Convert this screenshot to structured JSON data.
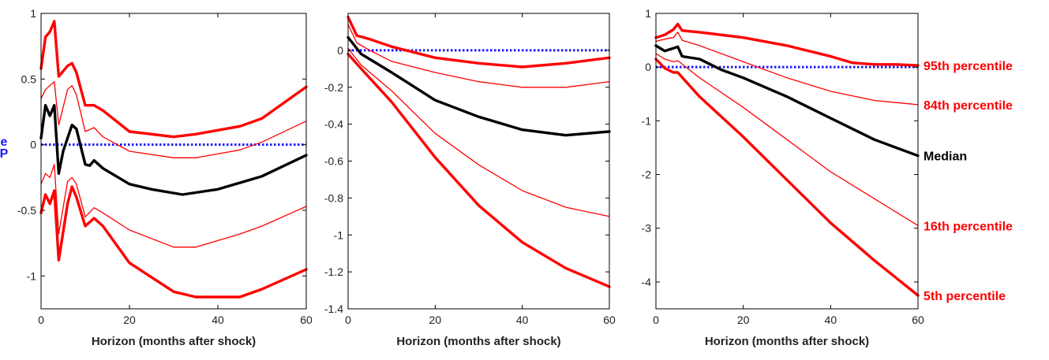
{
  "edge_label": {
    "top": "e",
    "bottom": "P",
    "color": "#1a1aff"
  },
  "colors": {
    "band": "#ff0000",
    "median": "#000000",
    "zero": "#1a1aff"
  },
  "chart_data": [
    {
      "type": "line",
      "xlabel": "Horizon (months after shock)",
      "xlim": [
        0,
        60
      ],
      "ylim": [
        -1.25,
        1.0
      ],
      "xticks": [
        0,
        20,
        40,
        60
      ],
      "yticks": [
        -1,
        -0.5,
        0,
        0.5,
        1
      ],
      "xtick_labels": [
        "0",
        "20",
        "40",
        "60"
      ],
      "ytick_labels": [
        "-1",
        "-0.5",
        "0",
        "0.5",
        "1"
      ],
      "zero_line": 0,
      "series": [
        {
          "key": "p95",
          "style": "thick-red",
          "x": [
            0,
            1,
            2,
            3,
            4,
            6,
            7,
            8,
            10,
            12,
            14,
            20,
            30,
            35,
            45,
            50,
            60
          ],
          "y": [
            0.58,
            0.82,
            0.86,
            0.94,
            0.52,
            0.6,
            0.62,
            0.55,
            0.3,
            0.3,
            0.26,
            0.1,
            0.06,
            0.08,
            0.14,
            0.2,
            0.44
          ]
        },
        {
          "key": "p84",
          "style": "thin-red",
          "x": [
            0,
            1,
            2,
            3,
            4,
            6,
            7,
            8,
            10,
            12,
            14,
            20,
            30,
            35,
            45,
            50,
            60
          ],
          "y": [
            0.35,
            0.42,
            0.45,
            0.48,
            0.15,
            0.42,
            0.45,
            0.38,
            0.1,
            0.13,
            0.06,
            -0.05,
            -0.1,
            -0.1,
            -0.04,
            0.02,
            0.18
          ]
        },
        {
          "key": "median",
          "style": "thick-black",
          "x": [
            0,
            1,
            2,
            3,
            4,
            5,
            7,
            8,
            10,
            11,
            12,
            14,
            20,
            25,
            32,
            40,
            50,
            60
          ],
          "y": [
            0.05,
            0.3,
            0.22,
            0.3,
            -0.22,
            -0.05,
            0.15,
            0.12,
            -0.15,
            -0.16,
            -0.12,
            -0.18,
            -0.3,
            -0.34,
            -0.38,
            -0.34,
            -0.24,
            -0.08
          ]
        },
        {
          "key": "p16",
          "style": "thin-red",
          "x": [
            0,
            1,
            2,
            3,
            4,
            6,
            7,
            8,
            10,
            12,
            14,
            20,
            30,
            35,
            45,
            50,
            60
          ],
          "y": [
            -0.3,
            -0.22,
            -0.25,
            -0.15,
            -0.68,
            -0.28,
            -0.25,
            -0.3,
            -0.55,
            -0.48,
            -0.52,
            -0.65,
            -0.78,
            -0.78,
            -0.68,
            -0.62,
            -0.47
          ]
        },
        {
          "key": "p5",
          "style": "thick-red",
          "x": [
            0,
            1,
            2,
            3,
            4,
            6,
            7,
            8,
            10,
            12,
            14,
            20,
            30,
            35,
            45,
            50,
            60
          ],
          "y": [
            -0.52,
            -0.38,
            -0.45,
            -0.35,
            -0.88,
            -0.45,
            -0.32,
            -0.4,
            -0.62,
            -0.56,
            -0.62,
            -0.9,
            -1.12,
            -1.16,
            -1.16,
            -1.1,
            -0.95
          ]
        }
      ]
    },
    {
      "type": "line",
      "xlabel": "Horizon (months after shock)",
      "xlim": [
        0,
        60
      ],
      "ylim": [
        -1.4,
        0.2
      ],
      "xticks": [
        0,
        20,
        40,
        60
      ],
      "yticks": [
        -1.4,
        -1.2,
        -1,
        -0.8,
        -0.6,
        -0.4,
        -0.2,
        0
      ],
      "xtick_labels": [
        "0",
        "20",
        "40",
        "60"
      ],
      "ytick_labels": [
        "-1.4",
        "-1.2",
        "-1",
        "-0.8",
        "-0.6",
        "-0.4",
        "-0.2",
        "0"
      ],
      "zero_line": 0,
      "series": [
        {
          "key": "p95",
          "style": "thick-red",
          "x": [
            0,
            2,
            5,
            10,
            20,
            30,
            40,
            50,
            60
          ],
          "y": [
            0.18,
            0.08,
            0.06,
            0.02,
            -0.04,
            -0.07,
            -0.09,
            -0.07,
            -0.04
          ]
        },
        {
          "key": "p84",
          "style": "thin-red",
          "x": [
            0,
            2,
            5,
            10,
            20,
            30,
            40,
            50,
            60
          ],
          "y": [
            0.14,
            0.04,
            0.0,
            -0.06,
            -0.12,
            -0.17,
            -0.2,
            -0.2,
            -0.17
          ]
        },
        {
          "key": "median",
          "style": "thick-black",
          "x": [
            0,
            3,
            10,
            20,
            30,
            40,
            50,
            60
          ],
          "y": [
            0.07,
            -0.02,
            -0.12,
            -0.27,
            -0.36,
            -0.43,
            -0.46,
            -0.44
          ]
        },
        {
          "key": "p16",
          "style": "thin-red",
          "x": [
            0,
            3,
            10,
            20,
            30,
            40,
            50,
            60
          ],
          "y": [
            0.01,
            -0.08,
            -0.22,
            -0.45,
            -0.62,
            -0.76,
            -0.85,
            -0.9
          ]
        },
        {
          "key": "p5",
          "style": "thick-red",
          "x": [
            0,
            3,
            10,
            20,
            30,
            40,
            50,
            60
          ],
          "y": [
            -0.02,
            -0.1,
            -0.28,
            -0.58,
            -0.84,
            -1.04,
            -1.18,
            -1.28
          ]
        }
      ]
    },
    {
      "type": "line",
      "xlabel": "Horizon (months after shock)",
      "xlim": [
        0,
        60
      ],
      "ylim": [
        -4.5,
        1.0
      ],
      "xticks": [
        0,
        20,
        40,
        60
      ],
      "yticks": [
        -4,
        -3,
        -2,
        -1,
        0,
        1
      ],
      "xtick_labels": [
        "0",
        "20",
        "40",
        "60"
      ],
      "ytick_labels": [
        "-4",
        "-3",
        "-2",
        "-1",
        "0",
        "1"
      ],
      "zero_line": 0,
      "legend_labels": [
        {
          "series": "p95",
          "text": "95th percentile"
        },
        {
          "series": "p84",
          "text": "84th percentile"
        },
        {
          "series": "median",
          "text": "Median"
        },
        {
          "series": "p16",
          "text": "16th percentile"
        },
        {
          "series": "p5",
          "text": "5th percentile"
        }
      ],
      "series": [
        {
          "key": "p95",
          "style": "thick-red",
          "x": [
            0,
            2,
            4,
            5,
            6,
            10,
            20,
            30,
            40,
            45,
            50,
            55,
            60
          ],
          "y": [
            0.55,
            0.6,
            0.7,
            0.8,
            0.68,
            0.65,
            0.55,
            0.4,
            0.2,
            0.08,
            0.05,
            0.05,
            0.03
          ]
        },
        {
          "key": "p84",
          "style": "thin-red",
          "x": [
            0,
            2,
            4,
            5,
            6,
            10,
            20,
            30,
            40,
            50,
            60
          ],
          "y": [
            0.48,
            0.52,
            0.55,
            0.65,
            0.5,
            0.4,
            0.1,
            -0.2,
            -0.45,
            -0.62,
            -0.7
          ]
        },
        {
          "key": "median",
          "style": "thick-black",
          "x": [
            0,
            2,
            4,
            5,
            6,
            10,
            15,
            20,
            30,
            40,
            50,
            60
          ],
          "y": [
            0.4,
            0.3,
            0.35,
            0.38,
            0.2,
            0.15,
            -0.05,
            -0.2,
            -0.55,
            -0.95,
            -1.35,
            -1.65
          ]
        },
        {
          "key": "p16",
          "style": "thin-red",
          "x": [
            0,
            2,
            4,
            5,
            10,
            20,
            30,
            40,
            50,
            60
          ],
          "y": [
            0.25,
            0.15,
            0.1,
            0.12,
            -0.2,
            -0.75,
            -1.35,
            -1.95,
            -2.45,
            -2.95
          ]
        },
        {
          "key": "p5",
          "style": "thick-red",
          "x": [
            0,
            2,
            4,
            5,
            10,
            20,
            30,
            40,
            50,
            60
          ],
          "y": [
            0.15,
            -0.02,
            -0.1,
            -0.1,
            -0.55,
            -1.3,
            -2.1,
            -2.9,
            -3.6,
            -4.25
          ]
        }
      ]
    }
  ]
}
